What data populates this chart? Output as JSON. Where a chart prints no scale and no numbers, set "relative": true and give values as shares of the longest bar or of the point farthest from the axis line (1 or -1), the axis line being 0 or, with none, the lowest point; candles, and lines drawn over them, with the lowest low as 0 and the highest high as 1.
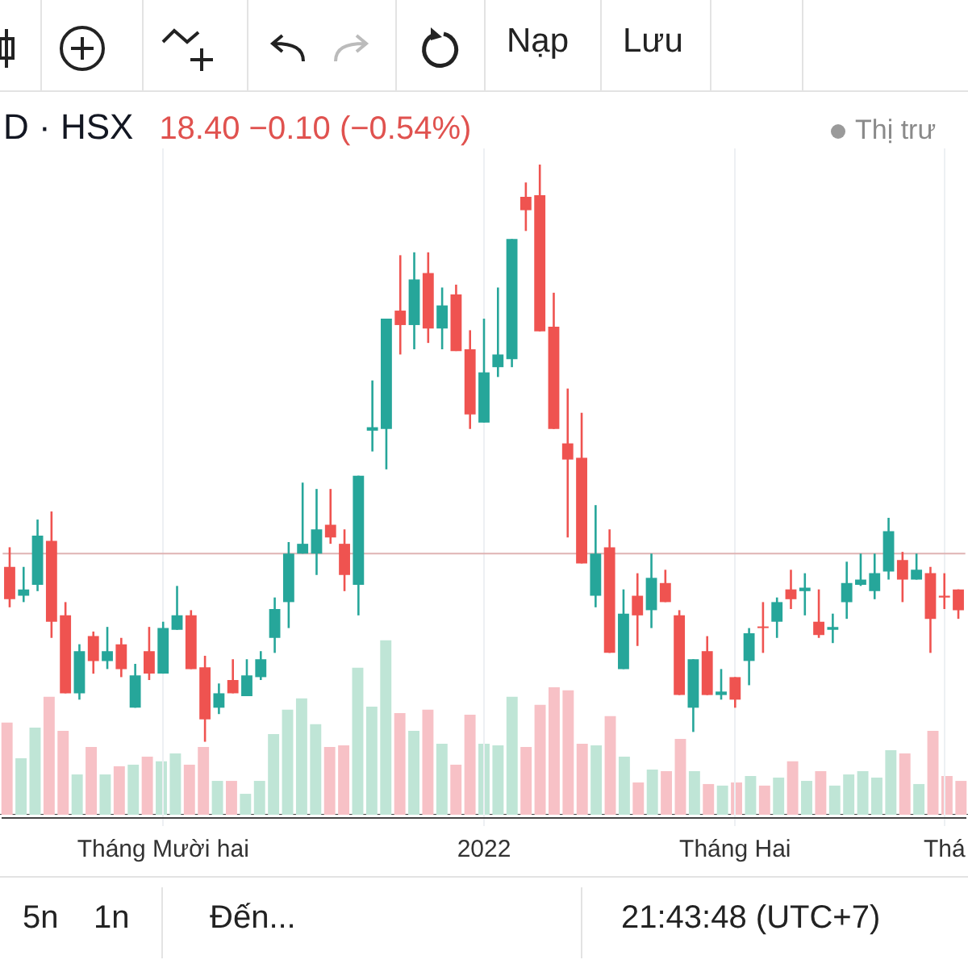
{
  "chart_data": [
    {
      "type": "candlestick",
      "title": "D · HSX",
      "subtitle": "18.40 −0.10 (−0.54%)",
      "annotations": [
        "Nạp",
        "Lưu",
        "Thị trư",
        "5n",
        "1n",
        "Đến...",
        "21:43:48 (UTC+7)"
      ],
      "relative": true,
      "grid": "x",
      "categories": [
        null,
        null,
        null,
        null,
        null,
        null,
        null,
        null,
        null,
        null,
        null,
        "Tháng Mười hai",
        null,
        null,
        null,
        null,
        null,
        null,
        null,
        null,
        null,
        null,
        null,
        null,
        null,
        null,
        null,
        null,
        null,
        null,
        null,
        null,
        null,
        null,
        "2022",
        null,
        null,
        null,
        null,
        null,
        null,
        null,
        null,
        null,
        null,
        null,
        null,
        null,
        null,
        null,
        null,
        null,
        "Tháng Hai",
        null,
        null,
        null,
        null,
        null,
        null,
        null,
        null,
        null,
        null,
        null,
        null,
        null,
        null,
        "Thá",
        null
      ],
      "ohlc": [
        [
          0.303,
          0.337,
          0.233,
          0.247
        ],
        [
          0.253,
          0.303,
          0.242,
          0.264
        ],
        [
          0.272,
          0.385,
          0.261,
          0.357
        ],
        [
          0.348,
          0.399,
          0.18,
          0.208
        ],
        [
          0.219,
          0.242,
          0.084,
          0.084
        ],
        [
          0.084,
          0.169,
          0.073,
          0.157
        ],
        [
          0.183,
          0.191,
          0.118,
          0.14
        ],
        [
          0.14,
          0.199,
          0.126,
          0.157
        ],
        [
          0.169,
          0.18,
          0.112,
          0.126
        ],
        [
          0.059,
          0.135,
          0.059,
          0.115
        ],
        [
          0.157,
          0.199,
          0.107,
          0.118
        ],
        [
          0.118,
          0.208,
          0.118,
          0.197
        ],
        [
          0.194,
          0.27,
          0.194,
          0.219
        ],
        [
          0.219,
          0.228,
          0.126,
          0.126
        ],
        [
          0.129,
          0.149,
          0,
          0.039
        ],
        [
          0.059,
          0.101,
          0.048,
          0.084
        ],
        [
          0.107,
          0.143,
          0.084,
          0.084
        ],
        [
          0.079,
          0.143,
          0.079,
          0.115
        ],
        [
          0.112,
          0.157,
          0.107,
          0.143
        ],
        [
          0.18,
          0.25,
          0.154,
          0.23
        ],
        [
          0.242,
          0.346,
          0.197,
          0.326
        ],
        [
          0.326,
          0.449,
          0.326,
          0.343
        ],
        [
          0.326,
          0.438,
          0.289,
          0.368
        ],
        [
          0.376,
          0.438,
          0.343,
          0.354
        ],
        [
          0.343,
          0.368,
          0.261,
          0.289
        ],
        [
          0.272,
          0.461,
          0.219,
          0.461
        ],
        [
          0.539,
          0.626,
          0.503,
          0.545
        ],
        [
          0.542,
          0.733,
          0.472,
          0.733
        ],
        [
          0.747,
          0.843,
          0.671,
          0.722
        ],
        [
          0.722,
          0.848,
          0.68,
          0.801
        ],
        [
          0.812,
          0.848,
          0.691,
          0.716
        ],
        [
          0.716,
          0.787,
          0.68,
          0.756
        ],
        [
          0.775,
          0.792,
          0.677,
          0.677
        ],
        [
          0.68,
          0.713,
          0.542,
          0.567
        ],
        [
          0.553,
          0.733,
          0.553,
          0.64
        ],
        [
          0.649,
          0.787,
          0.632,
          0.671
        ],
        [
          0.663,
          0.871,
          0.649,
          0.871
        ],
        [
          0.944,
          0.969,
          0.885,
          0.921
        ],
        [
          0.947,
          1,
          0.711,
          0.711
        ],
        [
          0.719,
          0.778,
          0.542,
          0.542
        ],
        [
          0.517,
          0.612,
          0.354,
          0.489
        ],
        [
          0.492,
          0.57,
          0.309,
          0.309
        ],
        [
          0.253,
          0.41,
          0.233,
          0.326
        ],
        [
          0.337,
          0.368,
          0.154,
          0.154
        ],
        [
          0.126,
          0.264,
          0.126,
          0.222
        ],
        [
          0.253,
          0.292,
          0.166,
          0.219
        ],
        [
          0.228,
          0.326,
          0.197,
          0.284
        ],
        [
          0.275,
          0.298,
          0.242,
          0.242
        ],
        [
          0.219,
          0.228,
          0.081,
          0.081
        ],
        [
          0.059,
          0.143,
          0.017,
          0.143
        ],
        [
          0.157,
          0.183,
          0.081,
          0.081
        ],
        [
          0.081,
          0.126,
          0.073,
          0.087
        ],
        [
          0.112,
          0.112,
          0.059,
          0.073
        ],
        [
          0.14,
          0.197,
          0.098,
          0.188
        ],
        [
          0.199,
          0.242,
          0.154,
          0.197
        ],
        [
          0.208,
          0.25,
          0.18,
          0.242
        ],
        [
          0.264,
          0.298,
          0.23,
          0.247
        ],
        [
          0.261,
          0.292,
          0.219,
          0.267
        ],
        [
          0.208,
          0.264,
          0.18,
          0.185
        ],
        [
          0.194,
          0.222,
          0.171,
          0.199
        ],
        [
          0.242,
          0.312,
          0.213,
          0.275
        ],
        [
          0.272,
          0.326,
          0.27,
          0.281
        ],
        [
          0.261,
          0.326,
          0.247,
          0.292
        ],
        [
          0.295,
          0.388,
          0.281,
          0.365
        ],
        [
          0.315,
          0.329,
          0.242,
          0.281
        ],
        [
          0.281,
          0.326,
          0.281,
          0.298
        ],
        [
          0.292,
          0.303,
          0.154,
          0.213
        ],
        [
          0.253,
          0.292,
          0.23,
          0.25
        ],
        [
          0.264,
          0.264,
          0.213,
          0.228
        ]
      ],
      "colors": [
        "#ef5350",
        "#26a69a",
        "#26a69a",
        "#ef5350",
        "#ef5350",
        "#26a69a",
        "#ef5350",
        "#26a69a",
        "#ef5350",
        "#26a69a",
        "#ef5350",
        "#26a69a",
        "#26a69a",
        "#ef5350",
        "#ef5350",
        "#26a69a",
        "#ef5350",
        "#26a69a",
        "#26a69a",
        "#26a69a",
        "#26a69a",
        "#26a69a",
        "#26a69a",
        "#ef5350",
        "#ef5350",
        "#26a69a",
        "#26a69a",
        "#26a69a",
        "#ef5350",
        "#26a69a",
        "#ef5350",
        "#26a69a",
        "#ef5350",
        "#ef5350",
        "#26a69a",
        "#26a69a",
        "#26a69a",
        "#ef5350",
        "#ef5350",
        "#ef5350",
        "#ef5350",
        "#ef5350",
        "#26a69a",
        "#ef5350",
        "#26a69a",
        "#ef5350",
        "#26a69a",
        "#ef5350",
        "#ef5350",
        "#26a69a",
        "#ef5350",
        "#26a69a",
        "#ef5350",
        "#26a69a",
        "#ef5350",
        "#26a69a",
        "#ef5350",
        "#26a69a",
        "#ef5350",
        "#26a69a",
        "#26a69a",
        "#26a69a",
        "#26a69a",
        "#26a69a",
        "#ef5350",
        "#26a69a",
        "#ef5350",
        "#ef5350",
        "#ef5350"
      ],
      "ref_lines": [
        {
          "axis": "y",
          "value": 0.326,
          "color": "#dfb3b3"
        }
      ]
    },
    {
      "type": "bar",
      "relative": true,
      "categories": [
        null,
        null,
        null,
        null,
        null,
        null,
        null,
        null,
        null,
        null,
        null,
        null,
        null,
        null,
        null,
        null,
        null,
        null,
        null,
        null,
        null,
        null,
        null,
        null,
        null,
        null,
        null,
        null,
        null,
        null,
        null,
        null,
        null,
        null,
        null,
        null,
        null,
        null,
        null,
        null,
        null,
        null,
        null,
        null,
        null,
        null,
        null,
        null,
        null,
        null,
        null,
        null,
        null,
        null,
        null,
        null,
        null,
        null,
        null,
        null,
        null,
        null,
        null,
        null,
        null,
        null,
        null,
        null,
        null
      ],
      "values": [
        0.528,
        0.324,
        0.5,
        0.676,
        0.481,
        0.231,
        0.389,
        0.231,
        0.278,
        0.287,
        0.333,
        0.306,
        0.352,
        0.287,
        0.389,
        0.194,
        0.194,
        0.12,
        0.194,
        0.463,
        0.602,
        0.667,
        0.519,
        0.389,
        0.398,
        0.843,
        0.62,
        1,
        0.583,
        0.481,
        0.602,
        0.407,
        0.287,
        0.574,
        0.407,
        0.398,
        0.676,
        0.389,
        0.63,
        0.731,
        0.713,
        0.407,
        0.398,
        0.565,
        0.333,
        0.185,
        0.259,
        0.25,
        0.435,
        0.25,
        0.176,
        0.167,
        0.185,
        0.222,
        0.167,
        0.213,
        0.306,
        0.194,
        0.25,
        0.167,
        0.231,
        0.25,
        0.213,
        0.37,
        0.352,
        0.176,
        0.481,
        0.222,
        0.194
      ],
      "colors": [
        "#f7c1c6",
        "#bfe5d6",
        "#bfe5d6",
        "#f7c1c6",
        "#f7c1c6",
        "#bfe5d6",
        "#f7c1c6",
        "#bfe5d6",
        "#f7c1c6",
        "#bfe5d6",
        "#f7c1c6",
        "#bfe5d6",
        "#bfe5d6",
        "#f7c1c6",
        "#f7c1c6",
        "#bfe5d6",
        "#f7c1c6",
        "#bfe5d6",
        "#bfe5d6",
        "#bfe5d6",
        "#bfe5d6",
        "#bfe5d6",
        "#bfe5d6",
        "#f7c1c6",
        "#f7c1c6",
        "#bfe5d6",
        "#bfe5d6",
        "#bfe5d6",
        "#f7c1c6",
        "#bfe5d6",
        "#f7c1c6",
        "#bfe5d6",
        "#f7c1c6",
        "#f7c1c6",
        "#bfe5d6",
        "#bfe5d6",
        "#bfe5d6",
        "#f7c1c6",
        "#f7c1c6",
        "#f7c1c6",
        "#f7c1c6",
        "#f7c1c6",
        "#bfe5d6",
        "#f7c1c6",
        "#bfe5d6",
        "#f7c1c6",
        "#bfe5d6",
        "#f7c1c6",
        "#f7c1c6",
        "#bfe5d6",
        "#f7c1c6",
        "#bfe5d6",
        "#f7c1c6",
        "#bfe5d6",
        "#f7c1c6",
        "#bfe5d6",
        "#f7c1c6",
        "#bfe5d6",
        "#f7c1c6",
        "#bfe5d6",
        "#bfe5d6",
        "#bfe5d6",
        "#bfe5d6",
        "#bfe5d6",
        "#f7c1c6",
        "#bfe5d6",
        "#f7c1c6",
        "#f7c1c6",
        "#f7c1c6"
      ]
    }
  ]
}
